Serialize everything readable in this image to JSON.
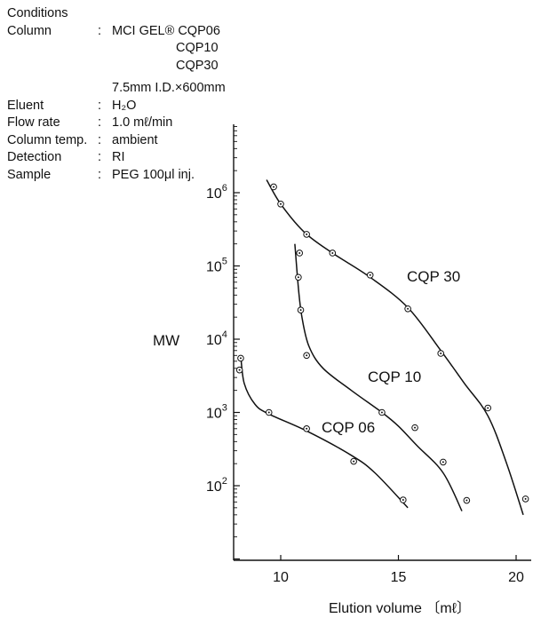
{
  "conditions": {
    "heading": "Conditions",
    "rows": [
      {
        "label": "Column",
        "value": "MCI GEL® CQP06"
      },
      {
        "label": "",
        "value": "CQP10"
      },
      {
        "label": "",
        "value": "CQP30"
      },
      {
        "label": "",
        "value": "7.5mm I.D.×600mm"
      },
      {
        "label": "Eluent",
        "value": "H₂O"
      },
      {
        "label": "Flow rate",
        "value": "1.0 mℓ/min"
      },
      {
        "label": "Column temp.",
        "value": "ambient"
      },
      {
        "label": "Detection",
        "value": "RI"
      },
      {
        "label": "Sample",
        "value": "PEG 100μl inj."
      }
    ]
  },
  "chart_data": {
    "type": "scatter",
    "title": "",
    "xlabel": "Elution volume 〔mℓ〕",
    "ylabel": "MW",
    "x_scale": "linear",
    "y_scale": "log",
    "xlim": [
      8.0,
      20.6
    ],
    "ylim": [
      10,
      3000000
    ],
    "x_ticks": [
      10,
      15,
      20
    ],
    "x_tick_labels": [
      "10",
      "15",
      "20"
    ],
    "y_ticks": [
      100,
      1000,
      10000,
      100000,
      1000000
    ],
    "y_tick_labels": [
      {
        "base": "10",
        "exp": "2"
      },
      {
        "base": "10",
        "exp": "3"
      },
      {
        "base": "10",
        "exp": "4"
      },
      {
        "base": "10",
        "exp": "5"
      },
      {
        "base": "10",
        "exp": "6"
      }
    ],
    "grid": false,
    "legend": "none",
    "series": [
      {
        "name": "CQP 06",
        "points": [
          [
            8.3,
            5500
          ],
          [
            8.25,
            3800
          ],
          [
            9.5,
            1000
          ],
          [
            11.1,
            600
          ],
          [
            13.1,
            215
          ],
          [
            15.2,
            64
          ]
        ],
        "curve": [
          [
            8.3,
            6000
          ],
          [
            8.45,
            2500
          ],
          [
            8.9,
            1300
          ],
          [
            9.5,
            950
          ],
          [
            11.1,
            560
          ],
          [
            13.0,
            260
          ],
          [
            14.0,
            150
          ],
          [
            15.4,
            50
          ]
        ]
      },
      {
        "name": "CQP 10",
        "points": [
          [
            10.8,
            150000
          ],
          [
            10.75,
            70000
          ],
          [
            10.85,
            25000
          ],
          [
            11.1,
            6000
          ],
          [
            14.3,
            1000
          ],
          [
            15.7,
            620
          ],
          [
            16.9,
            210
          ],
          [
            17.9,
            63
          ]
        ],
        "curve": [
          [
            10.6,
            200000
          ],
          [
            10.75,
            50000
          ],
          [
            10.9,
            20000
          ],
          [
            11.2,
            8000
          ],
          [
            11.8,
            4000
          ],
          [
            13.0,
            2000
          ],
          [
            14.3,
            1000
          ],
          [
            15.0,
            650
          ],
          [
            15.8,
            350
          ],
          [
            16.9,
            150
          ],
          [
            17.7,
            45
          ]
        ]
      },
      {
        "name": "CQP 30",
        "points": [
          [
            9.7,
            1200000
          ],
          [
            10.0,
            700000
          ],
          [
            11.1,
            270000
          ],
          [
            12.2,
            150000
          ],
          [
            13.8,
            75000
          ],
          [
            15.4,
            26000
          ],
          [
            16.8,
            6400
          ],
          [
            18.8,
            1150
          ],
          [
            20.4,
            66
          ]
        ],
        "curve": [
          [
            9.4,
            1500000
          ],
          [
            10.0,
            700000
          ],
          [
            11.0,
            290000
          ],
          [
            12.2,
            150000
          ],
          [
            13.8,
            70000
          ],
          [
            15.4,
            27000
          ],
          [
            16.8,
            7000
          ],
          [
            17.8,
            2500
          ],
          [
            18.8,
            900
          ],
          [
            19.6,
            200
          ],
          [
            20.3,
            40
          ]
        ]
      }
    ],
    "series_label_text": [
      "CQP 06",
      "CQP 10",
      "CQP 30"
    ]
  }
}
